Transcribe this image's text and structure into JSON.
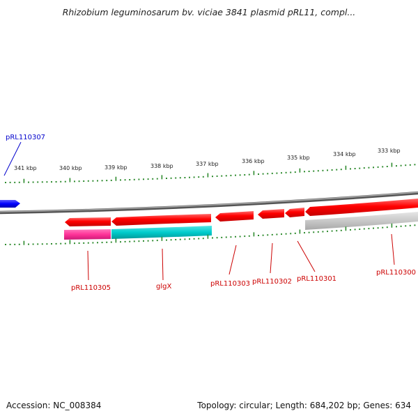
{
  "title": "Rhizobium leguminosarum bv. viciae 3841 plasmid pRL11, compl...",
  "footer": {
    "accession": "Accession: NC_008384",
    "summary": "Topology: circular; Length: 684,202 bp; Genes: 634"
  },
  "scale_labels": [
    "341 kbp",
    "340 kbp",
    "339 kbp",
    "338 kbp",
    "337 kbp",
    "336 kbp",
    "335 kbp",
    "334 kbp",
    "333 kbp"
  ],
  "gene_labels": [
    {
      "text": "pRL110307",
      "color": "#0000cc"
    },
    {
      "text": "pRL110305",
      "color": "#cc0000"
    },
    {
      "text": "glgX",
      "color": "#cc0000"
    },
    {
      "text": "pRL110303",
      "color": "#cc0000"
    },
    {
      "text": "pRL110302",
      "color": "#cc0000"
    },
    {
      "text": "pRL110301",
      "color": "#cc0000"
    },
    {
      "text": "pRL110300",
      "color": "#cc0000"
    }
  ],
  "colors": {
    "forward_gene": "#ff0000",
    "reverse_gene": "#0000ff",
    "cog_magenta": "#ff3399",
    "cog_cyan": "#00cccc",
    "cog_gray": "#c8c8c8",
    "backbone": "#808080",
    "ticks": "#2e8b2e"
  }
}
